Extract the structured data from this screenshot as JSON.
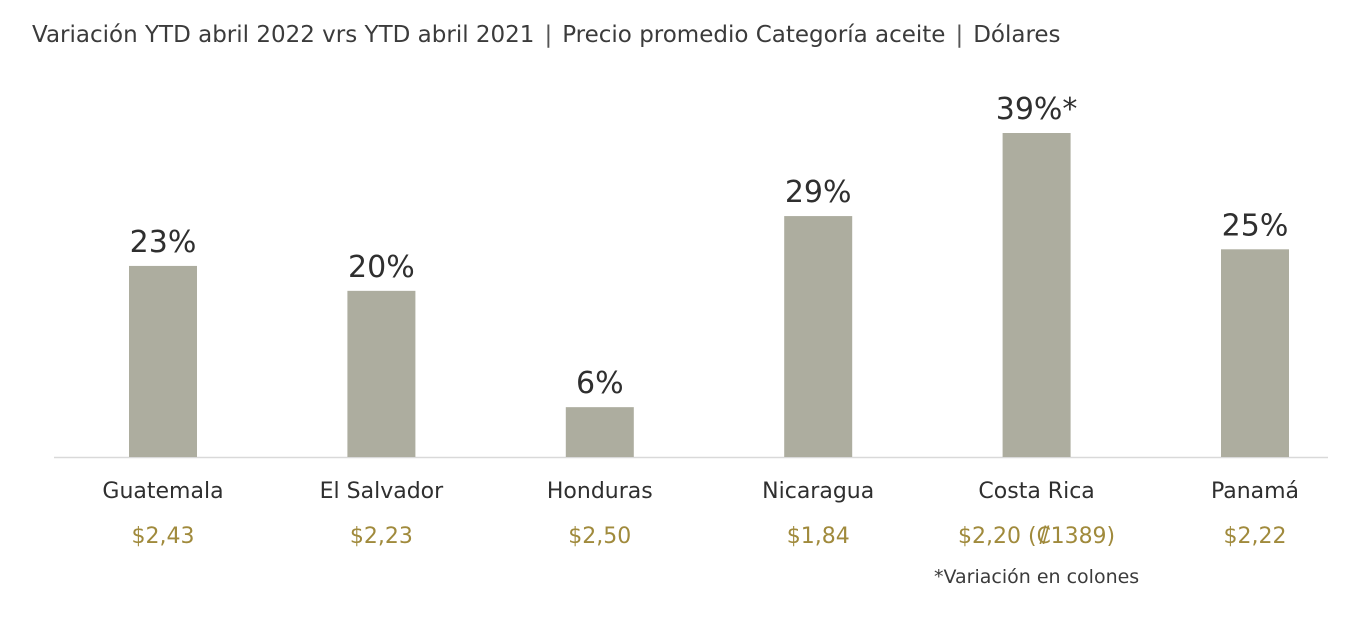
{
  "title": {
    "part1": "Variación YTD abril 2022 vrs YTD abril 2021",
    "part2": "Precio promedio Categoría aceite",
    "part3": "Dólares",
    "separator": "|"
  },
  "footnote": "*Variación en colones",
  "colors": {
    "bar": "#adad9f",
    "axis": "#d9d9d9",
    "value_label": "#2f2f2f",
    "category_label": "#2f2f2f",
    "price_label": "#a08a3c"
  },
  "chart_data": {
    "type": "bar",
    "categories": [
      "Guatemala",
      "El Salvador",
      "Honduras",
      "Nicaragua",
      "Costa Rica",
      "Panamá"
    ],
    "values": [
      23,
      20,
      6,
      29,
      39,
      25
    ],
    "data_labels": [
      "23%",
      "20%",
      "6%",
      "29%",
      "39%*",
      "25%"
    ],
    "prices": [
      "$2,43",
      "$2,23",
      "$2,50",
      "$1,84",
      "$2,20 (₡1389)",
      "$2,22"
    ],
    "ylim": [
      0,
      39
    ],
    "grid": false,
    "legend": "none"
  }
}
